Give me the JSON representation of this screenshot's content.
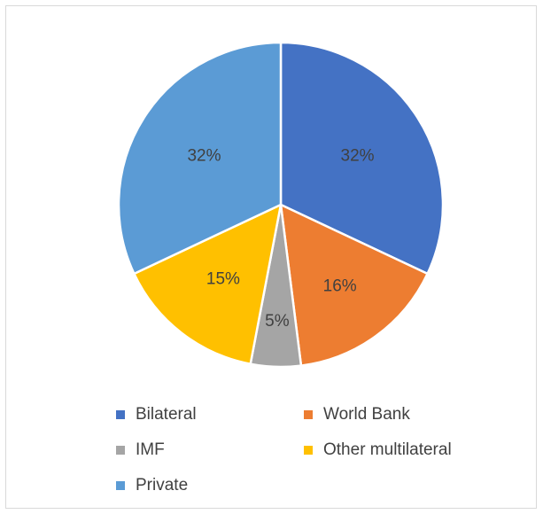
{
  "chart_data": {
    "type": "pie",
    "title": "",
    "slices": [
      {
        "label": "Bilateral",
        "value": 32,
        "display": "32%",
        "color": "#4472C4"
      },
      {
        "label": "World Bank",
        "value": 16,
        "display": "16%",
        "color": "#ED7D31"
      },
      {
        "label": "IMF",
        "value": 5,
        "display": "5%",
        "color": "#A5A5A5"
      },
      {
        "label": "Other multilateral",
        "value": 15,
        "display": "15%",
        "color": "#FFC000"
      },
      {
        "label": "Private",
        "value": 32,
        "display": "32%",
        "color": "#5B9BD5"
      }
    ],
    "start_angle": "12 o'clock",
    "direction": "clockwise",
    "legend_position": "bottom",
    "data_label_color": "#404040"
  }
}
